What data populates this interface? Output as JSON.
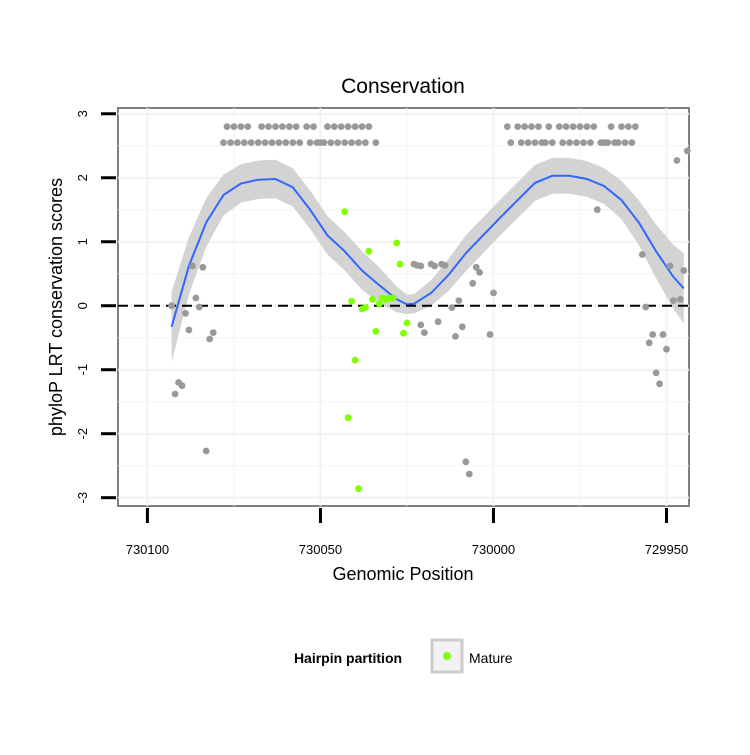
{
  "chart_data": {
    "type": "scatter",
    "title": "Conservation",
    "xlabel": "Genomic Position",
    "ylabel": "phyloP LRT conservation scores",
    "x_reversed": true,
    "xlim": [
      730110,
      729945
    ],
    "ylim": [
      -3.1,
      3.15
    ],
    "x_ticks": [
      730100,
      730050,
      730000,
      729950
    ],
    "x_tick_labels": [
      "730100",
      "730050",
      "730000",
      "729950"
    ],
    "y_ticks": [
      -3,
      -2,
      -1,
      0,
      1,
      2,
      3
    ],
    "y_tick_labels": [
      "-3",
      "-2",
      "-1",
      "0",
      "1",
      "2",
      "3"
    ],
    "grid": true,
    "reference_line": {
      "y": 0,
      "style": "dashed"
    },
    "legend": {
      "title": "Hairpin partition",
      "placement": "bottom",
      "entries": [
        "Mature"
      ]
    },
    "colors": {
      "other": "#999999",
      "mature": "#7fff00",
      "smooth": "#3366ff",
      "band": "#d3d3d3",
      "panel_border": "#7f7f7f",
      "grid": "#f2f2f2"
    },
    "series": [
      {
        "name": "",
        "role": "other",
        "points": [
          [
            730093,
            0.0
          ],
          [
            730092,
            -1.38
          ],
          [
            730091,
            -1.2
          ],
          [
            730090,
            -1.25
          ],
          [
            730089,
            -0.12
          ],
          [
            730088,
            -0.38
          ],
          [
            730087,
            0.62
          ],
          [
            730086,
            0.12
          ],
          [
            730085,
            -0.02
          ],
          [
            730084,
            0.6
          ],
          [
            730083,
            -2.27
          ],
          [
            730082,
            -0.52
          ],
          [
            730081,
            -0.42
          ],
          [
            730078,
            2.55
          ],
          [
            730077,
            2.8
          ],
          [
            730076,
            2.55
          ],
          [
            730075,
            2.8
          ],
          [
            730074,
            2.55
          ],
          [
            730073,
            2.8
          ],
          [
            730072,
            2.55
          ],
          [
            730071,
            2.8
          ],
          [
            730070,
            2.55
          ],
          [
            730068,
            2.55
          ],
          [
            730067,
            2.8
          ],
          [
            730066,
            2.55
          ],
          [
            730065,
            2.8
          ],
          [
            730064,
            2.55
          ],
          [
            730063,
            2.8
          ],
          [
            730062,
            2.55
          ],
          [
            730061,
            2.8
          ],
          [
            730060,
            2.55
          ],
          [
            730059,
            2.8
          ],
          [
            730058,
            2.55
          ],
          [
            730057,
            2.8
          ],
          [
            730056,
            2.55
          ],
          [
            730054,
            2.8
          ],
          [
            730053,
            2.55
          ],
          [
            730052,
            2.8
          ],
          [
            730051,
            2.55
          ],
          [
            730050,
            2.55
          ],
          [
            730049,
            2.55
          ],
          [
            730048,
            2.8
          ],
          [
            730047,
            2.55
          ],
          [
            730046,
            2.8
          ],
          [
            730045,
            2.55
          ],
          [
            730044,
            2.8
          ],
          [
            730043,
            2.55
          ],
          [
            730042,
            2.8
          ],
          [
            730041,
            2.55
          ],
          [
            730040,
            2.8
          ],
          [
            730039,
            2.55
          ],
          [
            730038,
            2.8
          ],
          [
            730037,
            2.55
          ],
          [
            730036,
            2.8
          ],
          [
            730034,
            2.55
          ],
          [
            730023,
            0.65
          ],
          [
            730022,
            0.63
          ],
          [
            730021,
            0.62
          ],
          [
            730021,
            -0.3
          ],
          [
            730020,
            -0.42
          ],
          [
            730018,
            0.65
          ],
          [
            730017,
            0.62
          ],
          [
            730016,
            -0.25
          ],
          [
            730015,
            0.65
          ],
          [
            730014,
            0.63
          ],
          [
            730012,
            -0.03
          ],
          [
            730011,
            -0.48
          ],
          [
            730010,
            0.08
          ],
          [
            730009,
            -0.33
          ],
          [
            730008,
            -2.44
          ],
          [
            730007,
            -2.63
          ],
          [
            730006,
            0.35
          ],
          [
            730005,
            0.6
          ],
          [
            730004,
            0.52
          ],
          [
            730001,
            -0.45
          ],
          [
            730000,
            0.2
          ],
          [
            729996,
            2.8
          ],
          [
            729995,
            2.55
          ],
          [
            729993,
            2.8
          ],
          [
            729992,
            2.55
          ],
          [
            729991,
            2.8
          ],
          [
            729990,
            2.55
          ],
          [
            729989,
            2.8
          ],
          [
            729988,
            2.55
          ],
          [
            729987,
            2.8
          ],
          [
            729986,
            2.55
          ],
          [
            729985,
            2.55
          ],
          [
            729984,
            2.8
          ],
          [
            729983,
            2.55
          ],
          [
            729981,
            2.8
          ],
          [
            729980,
            2.55
          ],
          [
            729979,
            2.8
          ],
          [
            729978,
            2.55
          ],
          [
            729977,
            2.8
          ],
          [
            729976,
            2.55
          ],
          [
            729975,
            2.8
          ],
          [
            729974,
            2.55
          ],
          [
            729973,
            2.8
          ],
          [
            729972,
            2.55
          ],
          [
            729971,
            2.8
          ],
          [
            729970,
            1.5
          ],
          [
            729969,
            2.55
          ],
          [
            729968,
            2.55
          ],
          [
            729967,
            2.55
          ],
          [
            729966,
            2.8
          ],
          [
            729965,
            2.55
          ],
          [
            729964,
            2.55
          ],
          [
            729963,
            2.8
          ],
          [
            729962,
            2.55
          ],
          [
            729961,
            2.8
          ],
          [
            729960,
            2.55
          ],
          [
            729959,
            2.8
          ],
          [
            729957,
            0.8
          ],
          [
            729956,
            -0.02
          ],
          [
            729955,
            -0.58
          ],
          [
            729954,
            -0.45
          ],
          [
            729953,
            -1.05
          ],
          [
            729952,
            -1.22
          ],
          [
            729951,
            -0.45
          ],
          [
            729950,
            -0.68
          ],
          [
            729949,
            0.62
          ],
          [
            729948,
            0.08
          ],
          [
            729947,
            2.27
          ],
          [
            729946,
            0.1
          ],
          [
            729945,
            0.55
          ],
          [
            729944,
            2.42
          ]
        ]
      },
      {
        "name": "Mature",
        "role": "mature",
        "points": [
          [
            730043,
            1.47
          ],
          [
            730042,
            -1.75
          ],
          [
            730041,
            0.07
          ],
          [
            730040,
            -0.85
          ],
          [
            730039,
            -2.86
          ],
          [
            730038,
            -0.05
          ],
          [
            730037,
            -0.03
          ],
          [
            730036,
            0.85
          ],
          [
            730035,
            0.1
          ],
          [
            730034,
            -0.4
          ],
          [
            730033,
            0.03
          ],
          [
            730032,
            0.12
          ],
          [
            730031,
            0.1
          ],
          [
            730030,
            0.12
          ],
          [
            730029,
            0.12
          ],
          [
            730028,
            0.98
          ],
          [
            730027,
            0.65
          ],
          [
            730026,
            -0.43
          ],
          [
            730025,
            -0.27
          ]
        ]
      }
    ],
    "smooth": [
      [
        730093,
        -0.33
      ],
      [
        730088,
        0.62
      ],
      [
        730083,
        1.3
      ],
      [
        730078,
        1.73
      ],
      [
        730073,
        1.91
      ],
      [
        730068,
        1.97
      ],
      [
        730063,
        1.98
      ],
      [
        730058,
        1.85
      ],
      [
        730053,
        1.5
      ],
      [
        730048,
        1.1
      ],
      [
        730043,
        0.85
      ],
      [
        730038,
        0.55
      ],
      [
        730033,
        0.32
      ],
      [
        730028,
        0.1
      ],
      [
        730025,
        0.02
      ],
      [
        730023,
        0.03
      ],
      [
        730018,
        0.2
      ],
      [
        730013,
        0.48
      ],
      [
        730008,
        0.82
      ],
      [
        730003,
        1.1
      ],
      [
        729998,
        1.38
      ],
      [
        729993,
        1.65
      ],
      [
        729988,
        1.92
      ],
      [
        729983,
        2.03
      ],
      [
        729978,
        2.03
      ],
      [
        729973,
        1.98
      ],
      [
        729968,
        1.87
      ],
      [
        729963,
        1.65
      ],
      [
        729958,
        1.3
      ],
      [
        729953,
        0.85
      ],
      [
        729948,
        0.45
      ],
      [
        729945,
        0.27
      ]
    ],
    "band_halfwidth": [
      0.55,
      0.45,
      0.38,
      0.32,
      0.3,
      0.3,
      0.3,
      0.3,
      0.3,
      0.3,
      0.3,
      0.3,
      0.28,
      0.2,
      0.15,
      0.15,
      0.2,
      0.25,
      0.28,
      0.28,
      0.28,
      0.28,
      0.28,
      0.28,
      0.28,
      0.28,
      0.28,
      0.3,
      0.35,
      0.42,
      0.5,
      0.55
    ]
  }
}
